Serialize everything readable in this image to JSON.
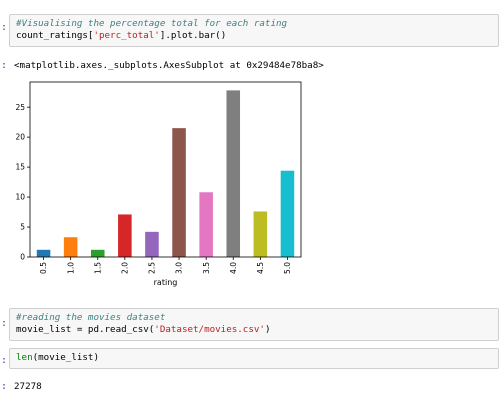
{
  "cells": [
    {
      "prompt": ":",
      "lines": [
        [
          {
            "t": "comment",
            "v": "#Visualising the percentage total for each rating"
          }
        ],
        [
          {
            "t": "plain",
            "v": "count_ratings["
          },
          {
            "t": "str",
            "v": "'perc_total'"
          },
          {
            "t": "plain",
            "v": "].plot.bar()"
          }
        ]
      ]
    },
    {
      "prompt": ":",
      "lines": [
        [
          {
            "t": "comment",
            "v": "#reading the movies dataset"
          }
        ],
        [
          {
            "t": "plain",
            "v": "movie_list = pd.read_csv("
          },
          {
            "t": "str",
            "v": "'Dataset/movies.csv'"
          },
          {
            "t": "plain",
            "v": ")"
          }
        ]
      ]
    },
    {
      "prompt": ":",
      "lines": [
        [
          {
            "t": "bi",
            "v": "len"
          },
          {
            "t": "plain",
            "v": "(movie_list)"
          }
        ]
      ]
    }
  ],
  "outputs": {
    "repr": "<matplotlib.axes._subplots.AxesSubplot at 0x29484e78ba8>",
    "prompt_len": ":",
    "len_value": "27278"
  },
  "chart_data": {
    "type": "bar",
    "categories": [
      "0.5",
      "1.0",
      "1.5",
      "2.0",
      "2.5",
      "3.0",
      "3.5",
      "4.0",
      "4.5",
      "5.0"
    ],
    "values": [
      1.2,
      3.3,
      1.2,
      7.1,
      4.2,
      21.5,
      10.8,
      27.8,
      7.6,
      14.4
    ],
    "colors": [
      "#1f77b4",
      "#ff7f0e",
      "#2ca02c",
      "#d62728",
      "#9467bd",
      "#8c564b",
      "#e377c2",
      "#7f7f7f",
      "#bcbd22",
      "#17becf"
    ],
    "xlabel": "rating",
    "ylabel": "",
    "ylim": [
      0,
      29.2
    ],
    "yticks": [
      0,
      5,
      10,
      15,
      20,
      25
    ],
    "grid": false,
    "legend": "none"
  }
}
